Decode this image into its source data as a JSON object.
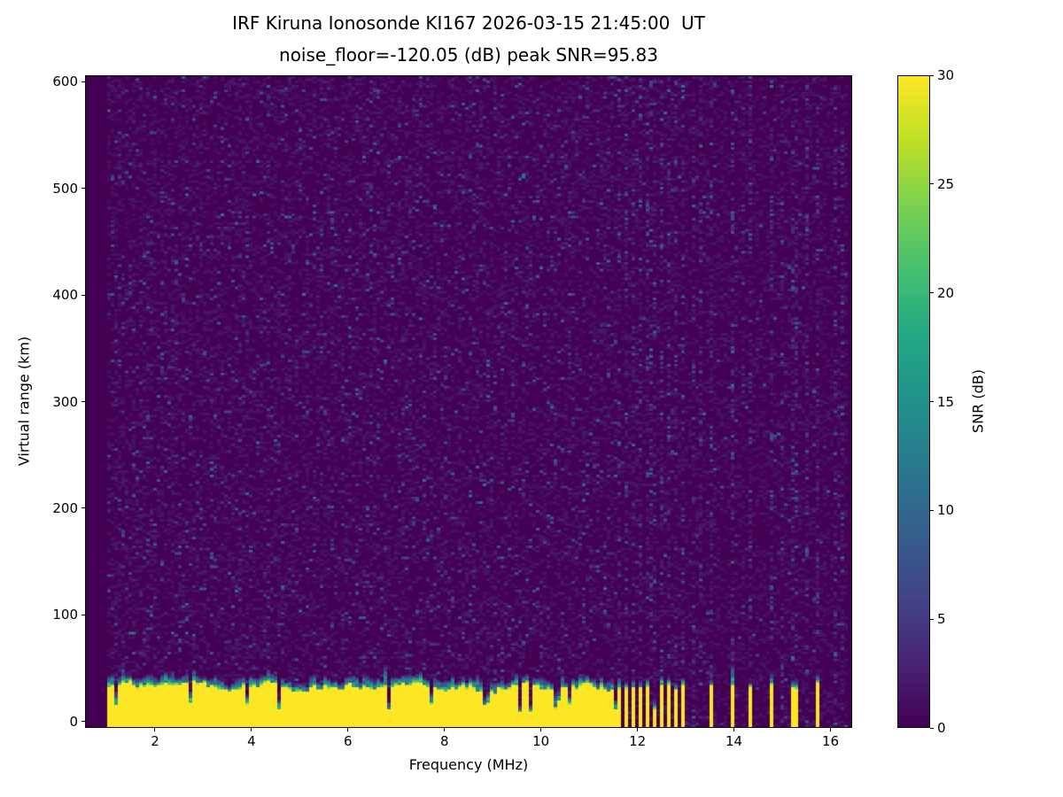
{
  "chart_data": {
    "type": "heatmap",
    "title_lines": [
      "IRF Kiruna Ionosonde KI167 2026-03-15 21:45:00  UT",
      "noise_floor=-120.05 (dB) peak SNR=95.83"
    ],
    "station": "IRF Kiruna Ionosonde KI167",
    "timestamp_ut": "2026-03-15 21:45:00 UT",
    "noise_floor_db": -120.05,
    "peak_snr_db": 95.83,
    "xlabel": "Frequency (MHz)",
    "ylabel": "Virtual range (km)",
    "xlim": [
      0.55,
      16.45
    ],
    "ylim": [
      -6,
      606
    ],
    "x_ticks": [
      2,
      4,
      6,
      8,
      10,
      12,
      14,
      16
    ],
    "y_ticks": [
      0,
      100,
      200,
      300,
      400,
      500,
      600
    ],
    "grid": false,
    "colorbar": {
      "label": "SNR (dB)",
      "vmin": 0,
      "vmax": 30,
      "ticks": [
        0,
        5,
        10,
        15,
        20,
        25,
        30
      ],
      "colormap": "viridis",
      "colormap_stops": [
        "#440154",
        "#482475",
        "#414487",
        "#355f8d",
        "#2a788e",
        "#21918c",
        "#22a884",
        "#44bf70",
        "#7ad151",
        "#bddf26",
        "#fde725"
      ]
    },
    "heatmap": {
      "background_snr_db": 0,
      "sweep_mhz": [
        1.0,
        16.4
      ],
      "ground_echo_band": {
        "snr_db": 30,
        "top_km_range": [
          22,
          42
        ],
        "solid_mhz": [
          1.0,
          11.6
        ],
        "striped_mhz": [
          11.6,
          13.05
        ],
        "stripe_period_mhz": 0.145,
        "stripe_duty": 0.55,
        "isolated_stripes_mhz": [
          13.55,
          14.0,
          14.38,
          14.78,
          15.28,
          15.74
        ]
      },
      "rfi_columns_mhz": [
        12.3,
        13.2,
        13.35,
        15.0,
        15.55,
        16.1,
        16.25
      ],
      "speckle": {
        "left_density": 0.085,
        "rfi_density": 0.22,
        "right_density": 0.015,
        "max_snr_db": 12
      },
      "seed": 42
    }
  }
}
